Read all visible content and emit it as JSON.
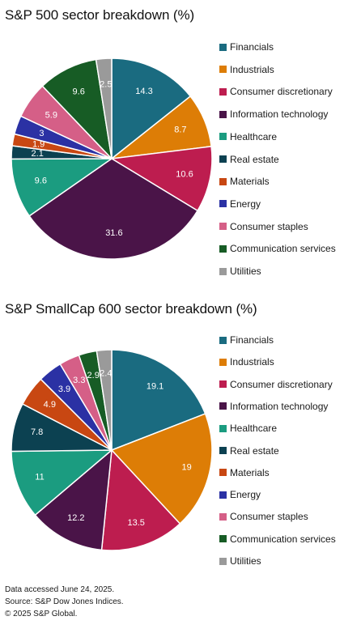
{
  "colors": {
    "Financials": "#1a6b80",
    "Industrials": "#dd7d06",
    "Consumer discretionary": "#bd1d4f",
    "Information technology": "#4a1448",
    "Healthcare": "#1b9c80",
    "Real estate": "#0c4151",
    "Materials": "#c84712",
    "Energy": "#2b31a4",
    "Consumer staples": "#d55f87",
    "Communication services": "#175c25",
    "Utilities": "#9a9a9a"
  },
  "chart_data": [
    {
      "type": "pie",
      "title": "S&P 500 sector breakdown (%)",
      "labels": [
        "Financials",
        "Industrials",
        "Consumer discretionary",
        "Information technology",
        "Healthcare",
        "Real estate",
        "Materials",
        "Energy",
        "Consumer staples",
        "Communication services",
        "Utilities"
      ],
      "values": [
        14.3,
        8.7,
        10.6,
        31.6,
        9.6,
        2.1,
        1.9,
        3,
        5.9,
        9.6,
        2.5
      ],
      "value_labels": [
        "14.3",
        "8.7",
        "10.6",
        "31.6",
        "9.6",
        "2.1",
        "1.9",
        "3",
        "5.9",
        "9.6",
        "2.5"
      ],
      "legend_position": "right",
      "start": "12 o'clock, clockwise"
    },
    {
      "type": "pie",
      "title": "S&P SmallCap 600 sector breakdown (%)",
      "labels": [
        "Financials",
        "Industrials",
        "Consumer discretionary",
        "Information technology",
        "Healthcare",
        "Real estate",
        "Materials",
        "Energy",
        "Consumer staples",
        "Communication services",
        "Utilities"
      ],
      "values": [
        19.1,
        19,
        13.5,
        12.2,
        11,
        7.8,
        4.9,
        3.9,
        3.3,
        2.9,
        2.4
      ],
      "value_labels": [
        "19.1",
        "19",
        "13.5",
        "12.2",
        "11",
        "7.8",
        "4.9",
        "3.9",
        "3.3",
        "2.9",
        "2.4"
      ],
      "legend_position": "right",
      "start": "12 o'clock, clockwise"
    }
  ],
  "footer": {
    "accessed": "Data accessed June 24, 2025.",
    "source": "Source: S&P Dow Jones Indices.",
    "copyright": "© 2025 S&P Global."
  }
}
